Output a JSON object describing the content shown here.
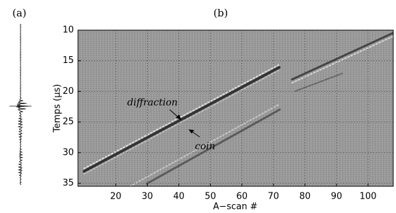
{
  "chart_data": {
    "type": "image",
    "panel_labels": [
      "(a)",
      "(b)"
    ],
    "xlabel": "A−scan #",
    "ylabel": "Temps (µs)",
    "xlim": [
      8,
      108
    ],
    "xticks": [
      20,
      30,
      40,
      50,
      60,
      70,
      80,
      90,
      100
    ],
    "ylim": [
      10,
      35.5
    ],
    "yticks": [
      10,
      15,
      20,
      25,
      30,
      35
    ],
    "y_inverted": true,
    "grid": true,
    "annotations": [
      "diffraction",
      "coin"
    ]
  }
}
